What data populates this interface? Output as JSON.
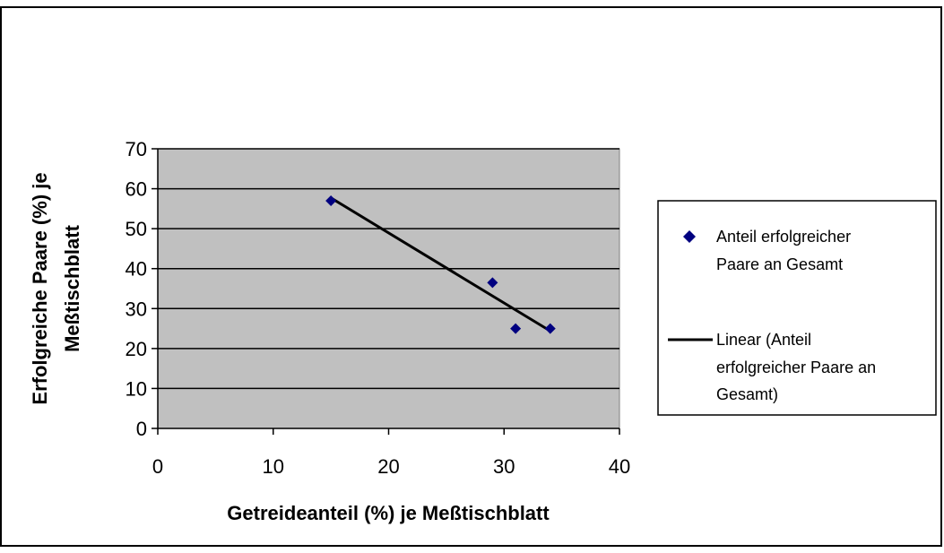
{
  "chart_data": {
    "type": "scatter",
    "title": "",
    "xlabel": "Getreideanteil (%) je Meßtischblatt",
    "ylabel_lines": [
      "Erfolgreiche Paare (%) je",
      "Meßtischblatt"
    ],
    "xlim": [
      0,
      40
    ],
    "ylim": [
      0,
      70
    ],
    "x_ticks": [
      0,
      10,
      20,
      30,
      40
    ],
    "y_ticks": [
      0,
      10,
      20,
      30,
      40,
      50,
      60,
      70
    ],
    "grid": "horizontal",
    "plot_background": "#c0c0c0",
    "series": [
      {
        "name_lines": [
          "Anteil erfolgreicher",
          "Paare an Gesamt"
        ],
        "kind": "scatter",
        "marker": "diamond",
        "color": "#000080",
        "x": [
          15,
          29,
          31,
          34
        ],
        "y": [
          57,
          36.5,
          25,
          25
        ]
      },
      {
        "name_lines": [
          "Linear (Anteil",
          "erfolgreicher Paare an",
          "Gesamt)"
        ],
        "kind": "trendline",
        "color": "#000000",
        "x": [
          15,
          34
        ],
        "y": [
          57.7,
          24.4
        ]
      }
    ],
    "legend_position": "right"
  }
}
